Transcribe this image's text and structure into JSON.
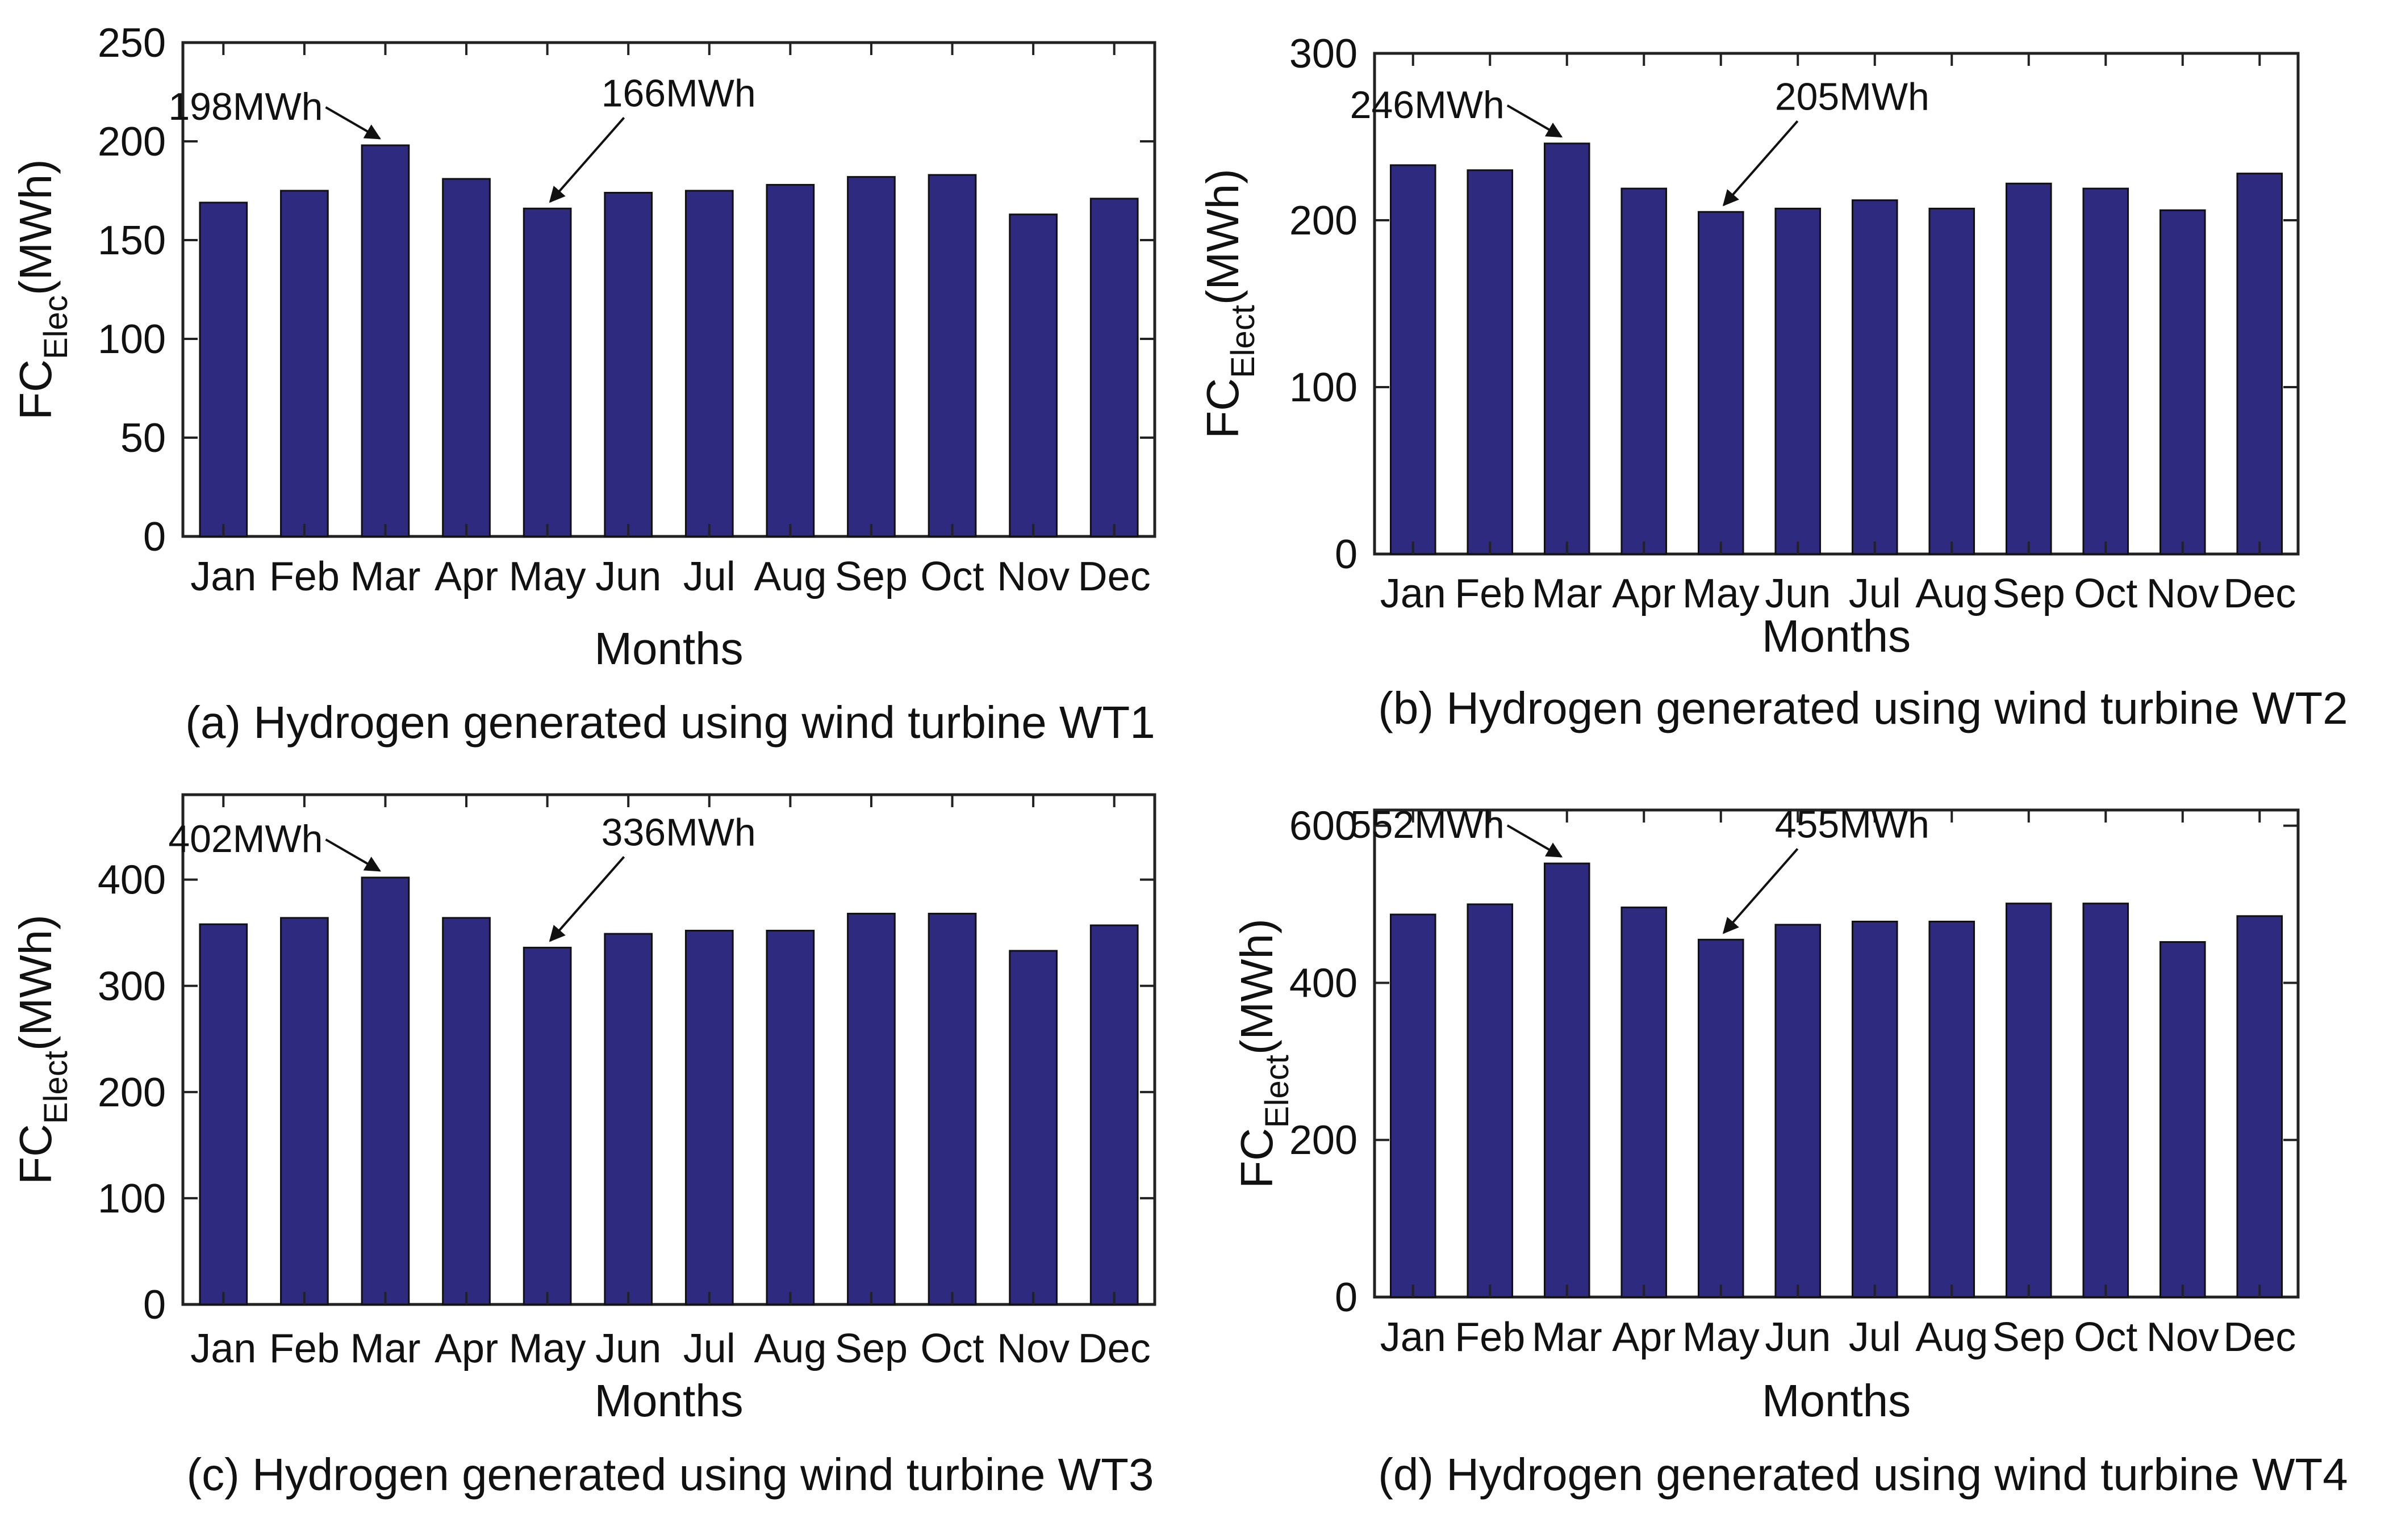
{
  "chart_data": [
    {
      "type": "bar",
      "caption": "(a) Hydrogen generated using wind turbine WT1",
      "xlabel": "Months",
      "ylabel": {
        "main": "FC",
        "sub": "Elec",
        "unit": "(MWh)"
      },
      "categories": [
        "Jan",
        "Feb",
        "Mar",
        "Apr",
        "May",
        "Jun",
        "Jul",
        "Aug",
        "Sep",
        "Oct",
        "Nov",
        "Dec"
      ],
      "values": [
        169,
        175,
        198,
        181,
        166,
        174,
        175,
        178,
        182,
        183,
        163,
        171
      ],
      "ylim": [
        0,
        250
      ],
      "yticks": [
        "0",
        "50",
        "100",
        "150",
        "200",
        "250"
      ],
      "bar_color": "#2e2a7f",
      "annotations": [
        {
          "text": "198MWh",
          "category_index": 2
        },
        {
          "text": "166MWh",
          "category_index": 4
        }
      ]
    },
    {
      "type": "bar",
      "caption": "(b) Hydrogen generated using wind turbine WT2",
      "xlabel": "Months",
      "ylabel": {
        "main": "FC",
        "sub": "Elect",
        "unit": "(MWh)"
      },
      "categories": [
        "Jan",
        "Feb",
        "Mar",
        "Apr",
        "May",
        "Jun",
        "Jul",
        "Aug",
        "Sep",
        "Oct",
        "Nov",
        "Dec"
      ],
      "values": [
        233,
        230,
        246,
        219,
        205,
        207,
        212,
        207,
        222,
        219,
        206,
        228
      ],
      "ylim": [
        0,
        300
      ],
      "yticks": [
        "0",
        "100",
        "200",
        "300"
      ],
      "bar_color": "#2e2a7f",
      "annotations": [
        {
          "text": "246MWh",
          "category_index": 2
        },
        {
          "text": "205MWh",
          "category_index": 4
        }
      ]
    },
    {
      "type": "bar",
      "caption": "(c) Hydrogen generated using wind turbine WT3",
      "xlabel": "Months",
      "ylabel": {
        "main": "FC",
        "sub": "Elect",
        "unit": "(MWh)"
      },
      "categories": [
        "Jan",
        "Feb",
        "Mar",
        "Apr",
        "May",
        "Jun",
        "Jul",
        "Aug",
        "Sep",
        "Oct",
        "Nov",
        "Dec"
      ],
      "values": [
        358,
        364,
        402,
        364,
        336,
        349,
        352,
        352,
        368,
        368,
        333,
        357
      ],
      "ylim": [
        0,
        480
      ],
      "yticks": [
        "0",
        "100",
        "200",
        "300",
        "400"
      ],
      "bar_color": "#2e2a7f",
      "annotations": [
        {
          "text": "402MWh",
          "category_index": 2
        },
        {
          "text": "336MWh",
          "category_index": 4
        }
      ]
    },
    {
      "type": "bar",
      "caption": "(d) Hydrogen generated using wind turbine WT4",
      "xlabel": "Months",
      "ylabel": {
        "main": "FC",
        "sub": "Elect",
        "unit": "(MWh)"
      },
      "categories": [
        "Jan",
        "Feb",
        "Mar",
        "Apr",
        "May",
        "Jun",
        "Jul",
        "Aug",
        "Sep",
        "Oct",
        "Nov",
        "Dec"
      ],
      "values": [
        487,
        500,
        552,
        496,
        455,
        474,
        478,
        478,
        501,
        501,
        452,
        485
      ],
      "ylim": [
        0,
        620
      ],
      "yticks": [
        "0",
        "200",
        "400",
        "600"
      ],
      "bar_color": "#2e2a7f",
      "annotations": [
        {
          "text": "552MWh",
          "category_index": 2
        },
        {
          "text": "455MWh",
          "category_index": 4
        }
      ]
    }
  ]
}
